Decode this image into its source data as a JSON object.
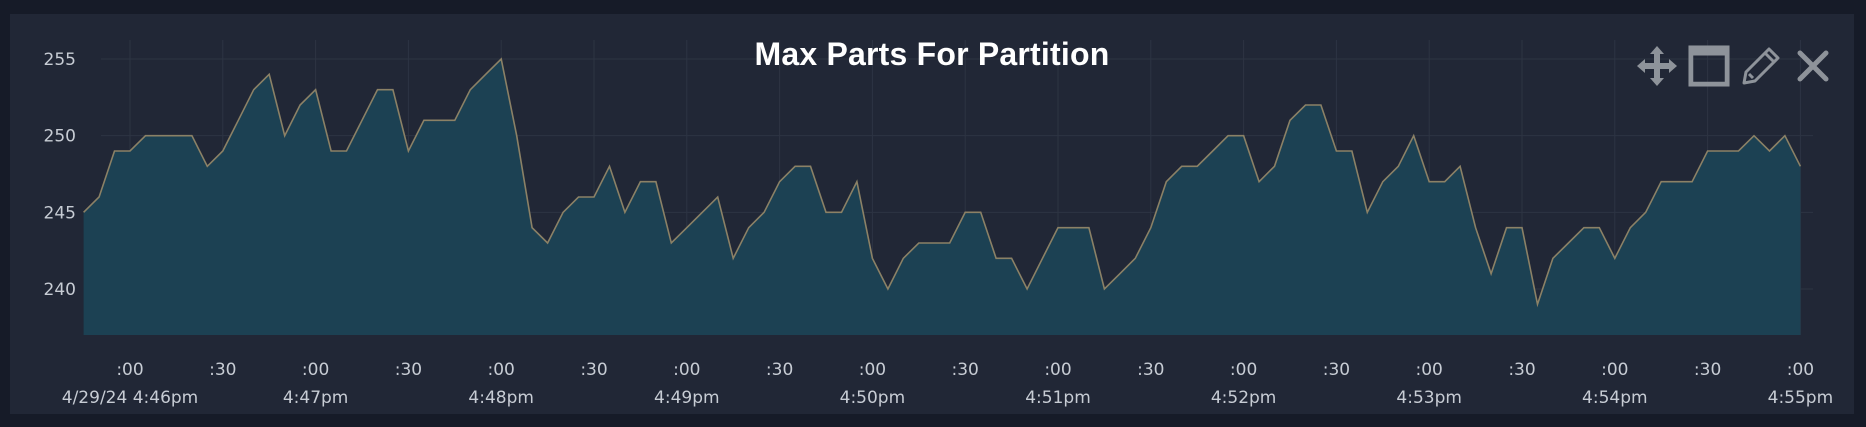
{
  "panel": {
    "title": "Max Parts For Partition",
    "toolbar": [
      {
        "name": "move-icon",
        "label": "Move"
      },
      {
        "name": "maximize-icon",
        "label": "Maximize"
      },
      {
        "name": "edit-icon",
        "label": "Edit"
      },
      {
        "name": "close-icon",
        "label": "Close"
      }
    ]
  },
  "colors": {
    "background": "#161b28",
    "panel": "#212736",
    "fill": "#1c4153",
    "line": "#8b8166",
    "grid": "#2d3443",
    "text": "#c7ccd4",
    "icon": "#8e939a"
  },
  "chart_data": {
    "type": "area",
    "title": "Max Parts For Partition",
    "xlabel": "",
    "ylabel": "",
    "ylim": [
      237,
      256.5
    ],
    "yticks": [
      240,
      245,
      250,
      255
    ],
    "grid": true,
    "legend": "none",
    "x_start": "4/29/24 4:46pm -0:00:15",
    "x_end": "4/29/24 4:55pm +0:00:08",
    "x_ticks": [
      {
        "top": ":00",
        "bottom": "4/29/24 4:46pm"
      },
      {
        "top": ":30",
        "bottom": ""
      },
      {
        "top": ":00",
        "bottom": "4:47pm"
      },
      {
        "top": ":30",
        "bottom": ""
      },
      {
        "top": ":00",
        "bottom": "4:48pm"
      },
      {
        "top": ":30",
        "bottom": ""
      },
      {
        "top": ":00",
        "bottom": "4:49pm"
      },
      {
        "top": ":30",
        "bottom": ""
      },
      {
        "top": ":00",
        "bottom": "4:50pm"
      },
      {
        "top": ":30",
        "bottom": ""
      },
      {
        "top": ":00",
        "bottom": "4:51pm"
      },
      {
        "top": ":30",
        "bottom": ""
      },
      {
        "top": ":00",
        "bottom": "4:52pm"
      },
      {
        "top": ":30",
        "bottom": ""
      },
      {
        "top": ":00",
        "bottom": "4:53pm"
      },
      {
        "top": ":30",
        "bottom": ""
      },
      {
        "top": ":00",
        "bottom": "4:54pm"
      },
      {
        "top": ":30",
        "bottom": ""
      },
      {
        "top": ":00",
        "bottom": "4:55pm"
      }
    ],
    "series": [
      {
        "values": [
          245,
          246,
          249,
          249,
          250,
          250,
          250,
          250,
          248,
          249,
          251,
          253,
          254,
          250,
          252,
          253,
          249,
          249,
          251,
          253,
          253,
          249,
          251,
          251,
          251,
          253,
          254,
          255,
          250,
          244,
          243,
          245,
          246,
          246,
          248,
          245,
          247,
          247,
          243,
          244,
          245,
          246,
          242,
          244,
          245,
          247,
          248,
          248,
          245,
          245,
          247,
          242,
          240,
          242,
          243,
          243,
          243,
          245,
          245,
          242,
          242,
          240,
          242,
          244,
          244,
          244,
          240,
          241,
          242,
          244,
          247,
          248,
          248,
          249,
          250,
          250,
          247,
          248,
          251,
          252,
          252,
          249,
          249,
          245,
          247,
          248,
          250,
          247,
          247,
          248,
          244,
          241,
          244,
          244,
          239,
          242,
          243,
          244,
          244,
          242,
          244,
          245,
          247,
          247,
          247,
          249,
          249,
          249,
          250,
          249,
          250,
          248
        ]
      }
    ]
  }
}
